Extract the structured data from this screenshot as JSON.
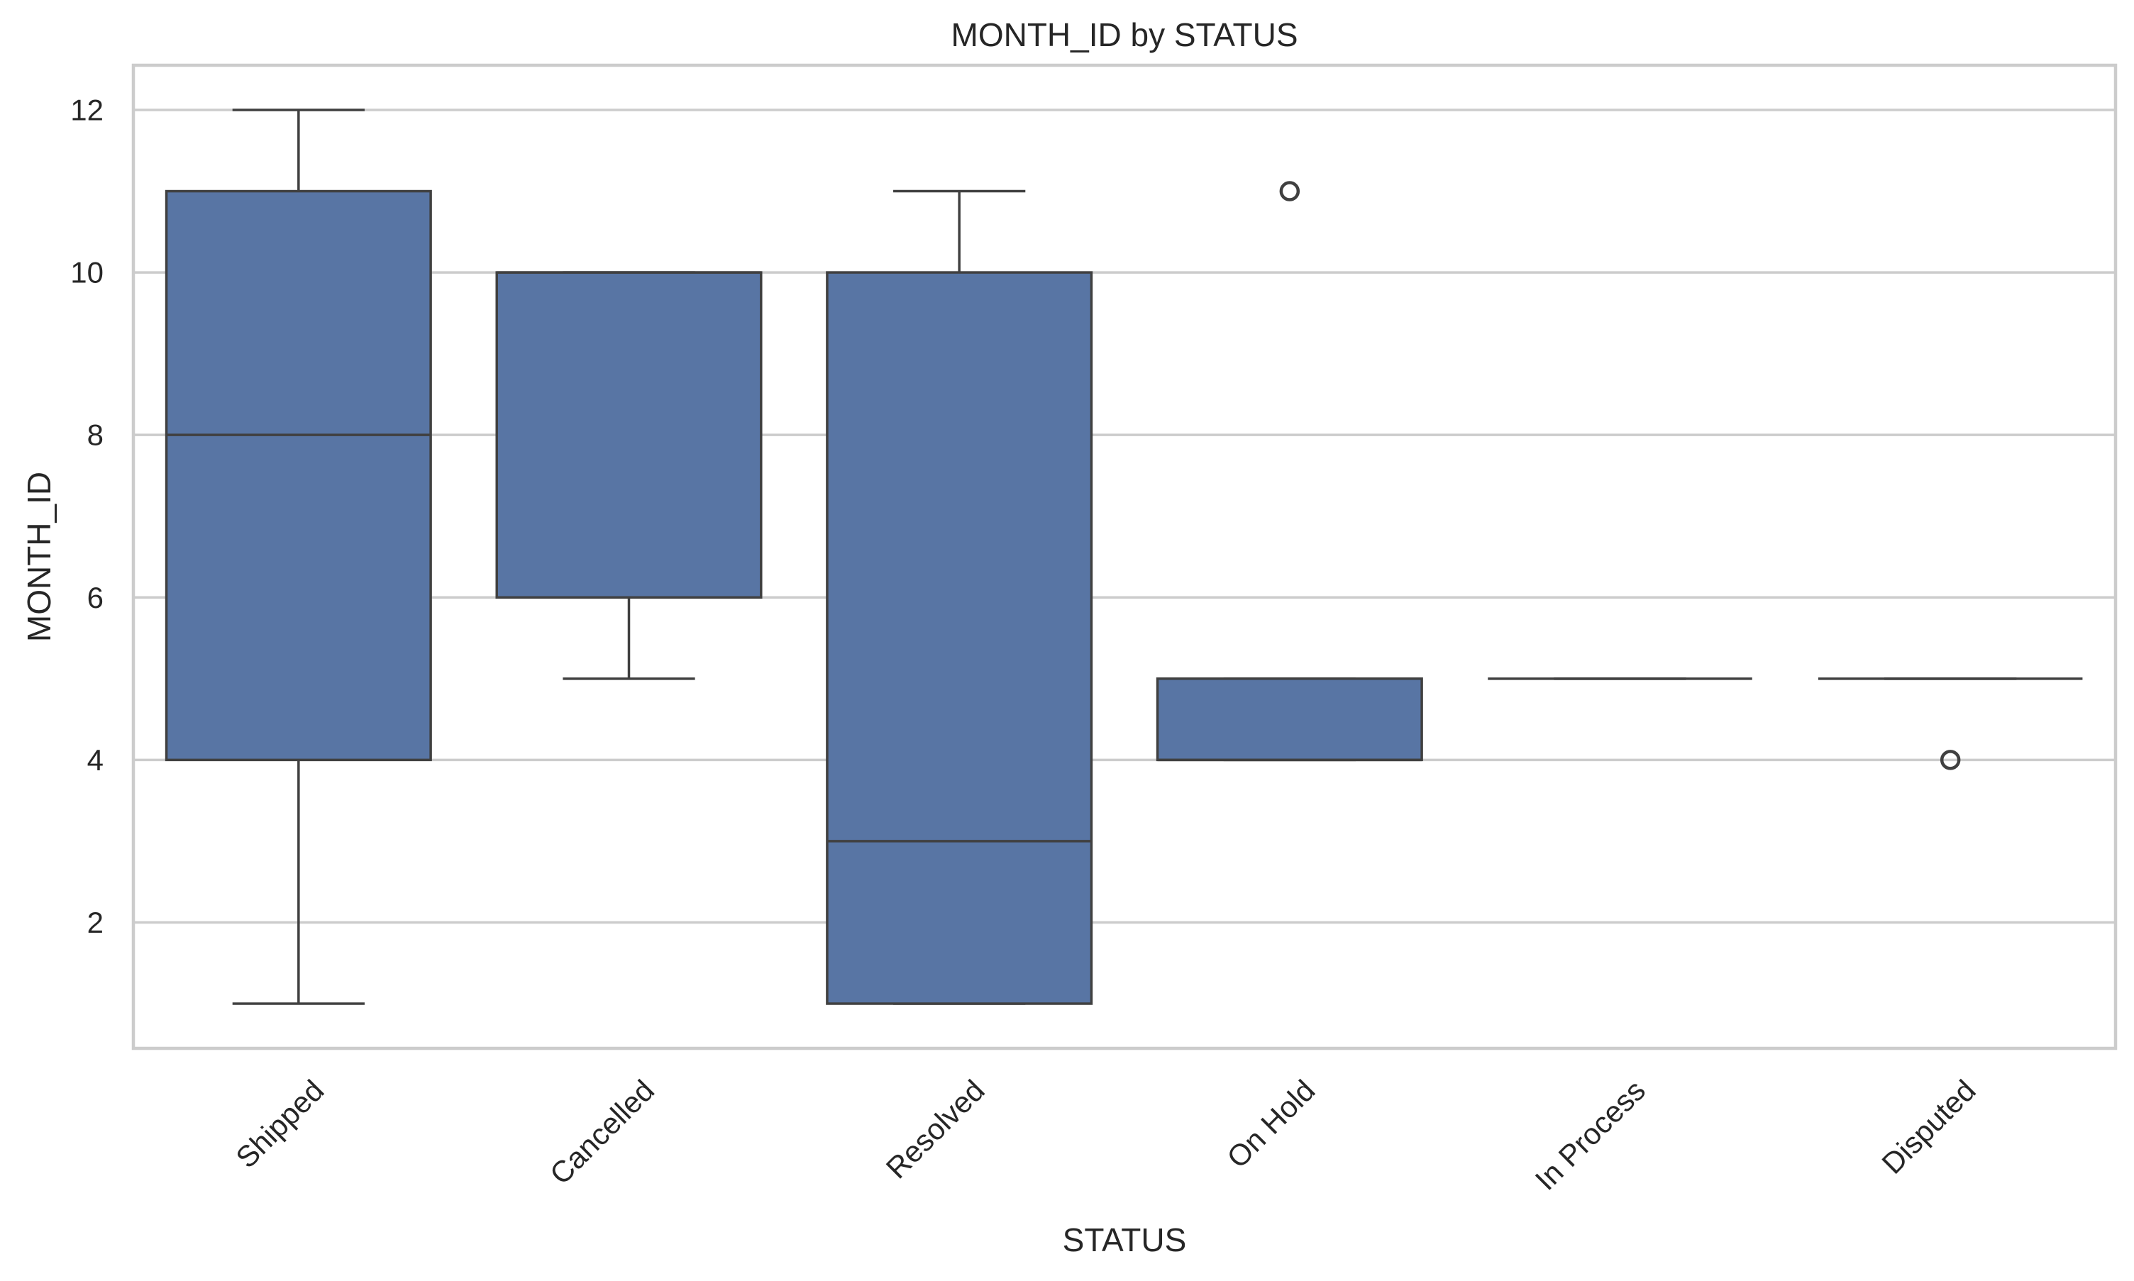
{
  "chart_data": {
    "type": "box",
    "title": "MONTH_ID by STATUS",
    "xlabel": "STATUS",
    "ylabel": "MONTH_ID",
    "ylim": [
      0.45,
      12.55
    ],
    "yticks": [
      2,
      4,
      6,
      8,
      10,
      12
    ],
    "ytick_labels": [
      "2",
      "4",
      "6",
      "8",
      "10",
      "12"
    ],
    "grid": true,
    "x_tick_rotation_deg": 45,
    "categories": [
      "Shipped",
      "Cancelled",
      "Resolved",
      "On Hold",
      "In Process",
      "Disputed"
    ],
    "boxes": [
      {
        "category": "Shipped",
        "whisker_low": 1,
        "q1": 4,
        "median": 8,
        "q3": 11,
        "whisker_high": 12,
        "outliers": []
      },
      {
        "category": "Cancelled",
        "whisker_low": 5,
        "q1": 6,
        "median": 10,
        "q3": 10,
        "whisker_high": 10,
        "outliers": []
      },
      {
        "category": "Resolved",
        "whisker_low": 1,
        "q1": 1,
        "median": 3,
        "q3": 10,
        "whisker_high": 11,
        "outliers": []
      },
      {
        "category": "On Hold",
        "whisker_low": 4,
        "q1": 4,
        "median": 4,
        "q3": 5,
        "whisker_high": 5,
        "outliers": [
          11
        ]
      },
      {
        "category": "In Process",
        "whisker_low": 5,
        "q1": 5,
        "median": 5,
        "q3": 5,
        "whisker_high": 5,
        "outliers": []
      },
      {
        "category": "Disputed",
        "whisker_low": 5,
        "q1": 5,
        "median": 5,
        "q3": 5,
        "whisker_high": 5,
        "outliers": [
          4
        ]
      }
    ],
    "colors": {
      "box_fill": "#5875a4",
      "line": "#404040",
      "grid": "#cccccc",
      "text": "#262626",
      "background": "#ffffff"
    }
  }
}
